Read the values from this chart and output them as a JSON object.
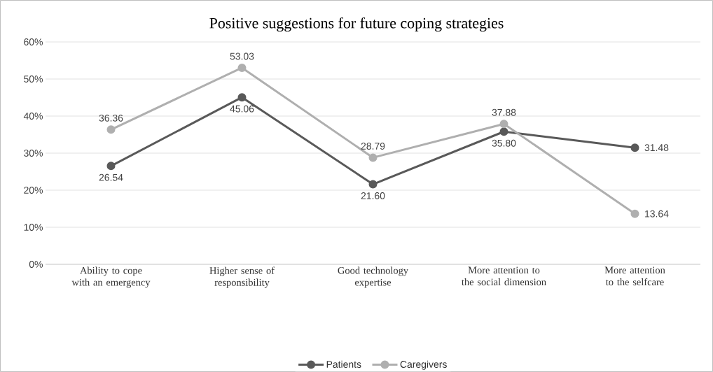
{
  "chart_data": {
    "type": "line",
    "title": "Positive suggestions for future coping strategies",
    "categories": [
      "Ability to cope with an emergency",
      "Higher sense of responsibility",
      "Good technology expertise",
      "More attention to the social dimension",
      "More attention to the selfcare"
    ],
    "series": [
      {
        "name": "Patients",
        "color": "#595959",
        "values": [
          26.54,
          45.06,
          21.6,
          35.8,
          31.48
        ],
        "value_labels": [
          "26.54",
          "45.06",
          "21.60",
          "35.80",
          "31.48"
        ]
      },
      {
        "name": "Caregivers",
        "color": "#afafaf",
        "values": [
          36.36,
          53.03,
          28.79,
          37.88,
          13.64
        ],
        "value_labels": [
          "36.36",
          "53.03",
          "28.79",
          "37.88",
          "13.64"
        ]
      }
    ],
    "ylim": [
      0,
      60
    ],
    "yticks": [
      {
        "value": 0,
        "label": "0%"
      },
      {
        "value": 10,
        "label": "10%"
      },
      {
        "value": 20,
        "label": "20%"
      },
      {
        "value": 30,
        "label": "30%"
      },
      {
        "value": 40,
        "label": "40%"
      },
      {
        "value": 50,
        "label": "50%"
      },
      {
        "value": 60,
        "label": "60%"
      }
    ],
    "grid": "y",
    "legend": "bottom",
    "marker": "circle",
    "line_style": "solid"
  }
}
